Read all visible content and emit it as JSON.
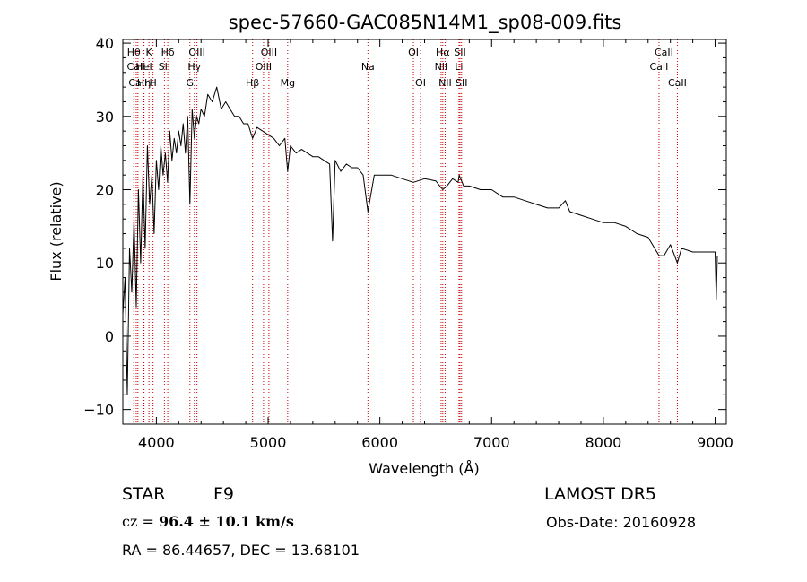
{
  "chart_data": {
    "type": "line",
    "title": "spec-57660-GAC085N14M1_sp08-009.fits",
    "xlabel": "Wavelength (Å)",
    "ylabel": "Flux (relative)",
    "xlim": [
      3700,
      9100
    ],
    "ylim": [
      -12,
      40.5
    ],
    "xticks": [
      4000,
      5000,
      6000,
      7000,
      8000,
      9000
    ],
    "yticks": [
      -10,
      0,
      10,
      20,
      30,
      40
    ],
    "grid": false,
    "line_color": "#000000",
    "marker_color": "#cc0000",
    "series": [
      {
        "x": [
          3700,
          3720,
          3740,
          3760,
          3780,
          3800,
          3820,
          3840,
          3860,
          3880,
          3900,
          3920,
          3940,
          3960,
          3980,
          4000,
          4020,
          4040,
          4060,
          4080,
          4100,
          4120,
          4140,
          4160,
          4180,
          4200,
          4220,
          4240,
          4260,
          4280,
          4300,
          4320,
          4340,
          4360,
          4380,
          4400,
          4430,
          4460,
          4500,
          4540,
          4580,
          4620,
          4660,
          4700,
          4740,
          4780,
          4820,
          4861,
          4900,
          4950,
          5000,
          5050,
          5100,
          5150,
          5175,
          5200,
          5250,
          5300,
          5350,
          5400,
          5450,
          5500,
          5550,
          5577,
          5600,
          5650,
          5700,
          5750,
          5800,
          5850,
          5893,
          5950,
          6000,
          6100,
          6200,
          6300,
          6400,
          6500,
          6563,
          6600,
          6650,
          6700,
          6710,
          6750,
          6800,
          6900,
          7000,
          7100,
          7200,
          7300,
          7400,
          7500,
          7600,
          7660,
          7700,
          7800,
          7900,
          8000,
          8100,
          8200,
          8300,
          8400,
          8498,
          8542,
          8600,
          8662,
          8700,
          8800,
          8900,
          9000,
          9010,
          9020
        ],
        "y": [
          3,
          8,
          -8,
          12,
          6,
          16,
          4,
          20,
          10,
          22,
          12,
          26,
          18,
          22,
          14,
          24,
          20,
          26,
          22,
          25,
          21,
          28,
          24,
          27,
          25,
          28,
          26,
          29,
          25,
          30,
          18,
          31,
          27,
          30,
          29,
          31,
          30,
          33,
          32,
          34,
          31,
          32,
          31,
          30,
          30,
          29,
          29,
          27,
          28.5,
          28,
          27.5,
          27,
          26,
          27,
          22.5,
          26,
          25,
          25.5,
          25,
          24.5,
          24.5,
          24,
          23.5,
          13,
          24,
          22.5,
          23.5,
          23,
          23,
          22,
          17,
          22,
          22,
          22,
          21.5,
          21,
          21.5,
          21.2,
          20,
          20.5,
          21.5,
          21,
          22,
          20.5,
          20.5,
          20,
          20,
          19,
          19,
          18.5,
          18,
          17.5,
          17.5,
          18.5,
          17,
          16.5,
          16,
          15.5,
          15.5,
          15,
          14,
          13.5,
          11,
          11,
          12.5,
          10,
          12,
          11.5,
          11.5,
          11.5,
          5,
          11
        ]
      }
    ],
    "line_markers": [
      {
        "x": 3798,
        "label": "Hθ",
        "row": 0
      },
      {
        "x": 3820,
        "label": "CaII",
        "row": 1
      },
      {
        "x": 3835,
        "label": "CaII",
        "row": 2
      },
      {
        "x": 3889,
        "label": "Hη",
        "row": 2
      },
      {
        "x": 3934,
        "label": "K",
        "row": 0
      },
      {
        "x": 3889,
        "label": "HeI",
        "row": 1
      },
      {
        "x": 3970,
        "label": "H",
        "row": 2
      },
      {
        "x": 4102,
        "label": "Hδ",
        "row": 0
      },
      {
        "x": 4072,
        "label": "SII",
        "row": 1
      },
      {
        "x": 4300,
        "label": "G",
        "row": 2
      },
      {
        "x": 4340,
        "label": "Hγ",
        "row": 1
      },
      {
        "x": 4363,
        "label": "OIII",
        "row": 0
      },
      {
        "x": 4861,
        "label": "Hβ",
        "row": 2
      },
      {
        "x": 4959,
        "label": "OIII",
        "row": 1
      },
      {
        "x": 5007,
        "label": "OIII",
        "row": 0
      },
      {
        "x": 5175,
        "label": "Mg",
        "row": 2
      },
      {
        "x": 5893,
        "label": "Na",
        "row": 1
      },
      {
        "x": 6300,
        "label": "OI",
        "row": 0
      },
      {
        "x": 6364,
        "label": "OI",
        "row": 2
      },
      {
        "x": 6548,
        "label": "NII",
        "row": 1
      },
      {
        "x": 6563,
        "label": "Hα",
        "row": 0
      },
      {
        "x": 6584,
        "label": "NII",
        "row": 2
      },
      {
        "x": 6708,
        "label": "Li",
        "row": 1
      },
      {
        "x": 6717,
        "label": "SII",
        "row": 0
      },
      {
        "x": 6731,
        "label": "SII",
        "row": 2
      },
      {
        "x": 8498,
        "label": "CaII",
        "row": 1
      },
      {
        "x": 8542,
        "label": "CaII",
        "row": 0
      },
      {
        "x": 8662,
        "label": "CaII",
        "row": 2
      }
    ]
  },
  "info": {
    "object_class": "STAR",
    "subclass": "F9",
    "survey": "LAMOST DR5",
    "cz_prefix": "cz = ",
    "cz_value": "96.4 ± 10.1 km/s",
    "obs_date": "Obs-Date: 20160928",
    "coords": "RA =  86.44657, DEC =  13.68101"
  }
}
